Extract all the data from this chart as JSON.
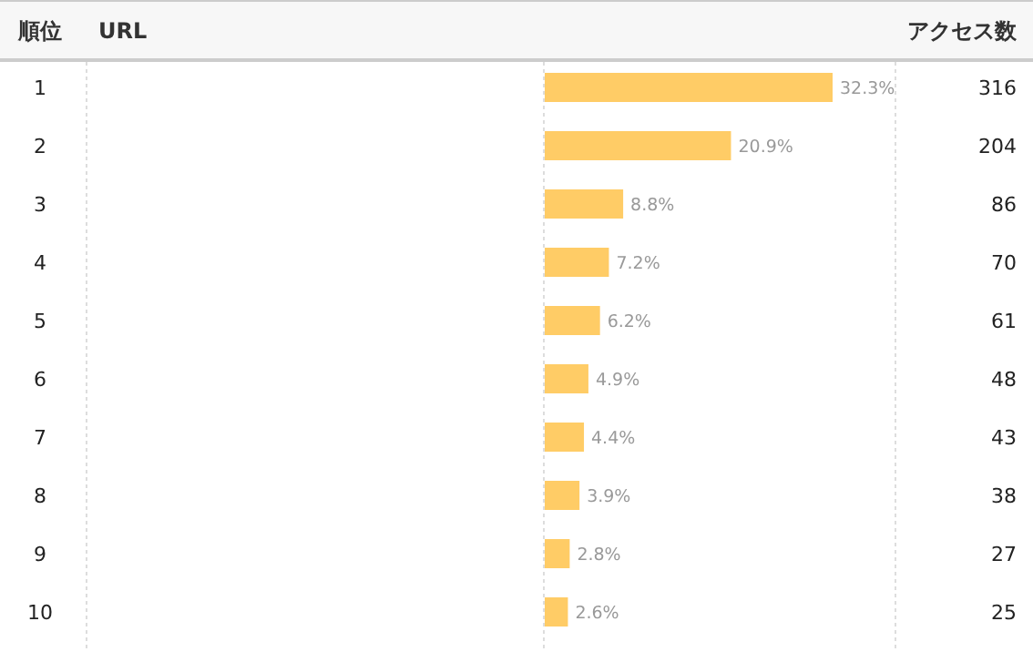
{
  "chart_data": {
    "type": "bar",
    "orientation": "horizontal",
    "ylabel": "順位",
    "categories": [
      "1",
      "2",
      "3",
      "4",
      "5",
      "6",
      "7",
      "8",
      "9",
      "10"
    ],
    "series": [
      {
        "color": "#ffcc66",
        "values": [
          32.3,
          20.9,
          8.8,
          7.2,
          6.2,
          4.9,
          4.4,
          3.9,
          2.8,
          2.6
        ],
        "value_labels": [
          "32.3%",
          "20.9%",
          "8.8%",
          "7.2%",
          "6.2%",
          "4.9%",
          "4.4%",
          "3.9%",
          "2.8%",
          "2.6%"
        ]
      }
    ],
    "annotations": [
      "URL",
      "アクセス数",
      "316",
      "204",
      "86",
      "70",
      "61",
      "48",
      "43",
      "38",
      "27",
      "25"
    ]
  }
}
